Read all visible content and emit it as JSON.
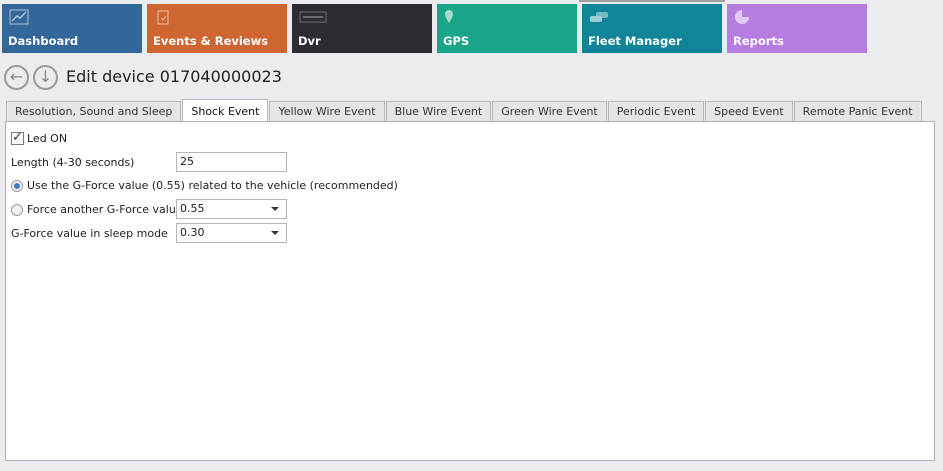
{
  "tiles": [
    {
      "label": "Dashboard",
      "color": "#336699",
      "icon": "chart-line-icon"
    },
    {
      "label": "Events & Reviews",
      "color": "#cf6531",
      "icon": "clipboard-check-icon"
    },
    {
      "label": "Dvr",
      "color": "#2a2d32",
      "icon": "dvr-logo-icon"
    },
    {
      "label": "GPS",
      "color": "#19a688",
      "icon": "map-pin-icon"
    },
    {
      "label": "Fleet Manager",
      "color": "#0f8597",
      "icon": "cars-icon"
    },
    {
      "label": "Reports",
      "color": "#b67ce0",
      "icon": "pie-chart-icon"
    }
  ],
  "title": "Edit device 017040000023",
  "tabs": [
    "Resolution, Sound and Sleep",
    "Shock Event",
    "Yellow Wire Event",
    "Blue Wire Event",
    "Green Wire Event",
    "Periodic Event",
    "Speed Event",
    "Remote Panic Event"
  ],
  "active_tab": "Shock Event",
  "form": {
    "led_label": "Led ON",
    "led_checked": true,
    "length_label": "Length (4-30 seconds)",
    "length_value": "25",
    "radio_vehicle_label": "Use the G-Force value (0.55) related to the vehicle (recommended)",
    "radio_vehicle_selected": true,
    "radio_force_label": "Force another G-Force value",
    "force_value": "0.55",
    "sleep_label": "G-Force value in sleep mode",
    "sleep_value": "0.30"
  }
}
